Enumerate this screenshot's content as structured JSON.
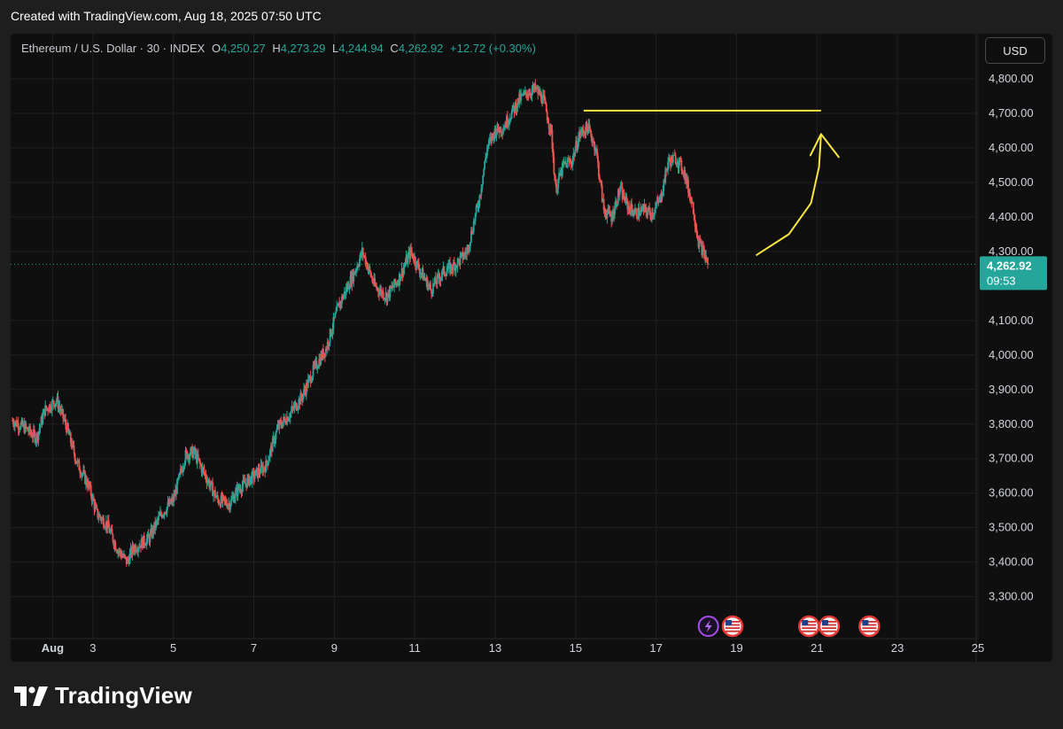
{
  "header": {
    "text": "Created with TradingView.com, Aug 18, 2025 07:50 UTC"
  },
  "legend": {
    "symbol": "Ethereum / U.S. Dollar · 30 · INDEX",
    "open_label": "O",
    "open": "4,250.27",
    "high_label": "H",
    "high": "4,273.29",
    "low_label": "L",
    "low": "4,244.94",
    "close_label": "C",
    "close": "4,262.92",
    "change": "+12.72 (+0.30%)"
  },
  "currency_button": "USD",
  "price_tag": {
    "price": "4,262.92",
    "countdown": "09:53"
  },
  "footer": {
    "brand": "TradingView"
  },
  "colors": {
    "up": "#26a69a",
    "down": "#ef5350",
    "annotation": "#f5e642",
    "background": "#0f0f0f",
    "grid": "#1f1f1f"
  },
  "event_icons": [
    {
      "type": "lightning-icon",
      "x": 18.3
    },
    {
      "type": "us-flag-icon",
      "x": 18.9
    },
    {
      "type": "us-flag-icon",
      "x": 20.8
    },
    {
      "type": "us-flag-icon",
      "x": 21.3
    },
    {
      "type": "us-flag-icon",
      "x": 22.3
    }
  ],
  "annotations": {
    "resistance_line": {
      "x_from": 15.2,
      "x_to": 21.1,
      "y": 4708
    },
    "arrow_path": [
      [
        19.5,
        4290
      ],
      [
        20.3,
        4350
      ],
      [
        20.85,
        4440
      ],
      [
        21.05,
        4545
      ],
      [
        21.1,
        4640
      ]
    ]
  },
  "chart_data": {
    "type": "candlestick",
    "title": "Ethereum / U.S. Dollar · 30 · INDEX",
    "interval": "30",
    "xlabel": "",
    "ylabel": "",
    "x_unit": "date (August 2025)",
    "xlim": [
      1.0,
      25.0
    ],
    "ylim": [
      3240,
      4895
    ],
    "x_ticks": [
      {
        "x": 2,
        "label": "Aug"
      },
      {
        "x": 3,
        "label": "3"
      },
      {
        "x": 5,
        "label": "5"
      },
      {
        "x": 7,
        "label": "7"
      },
      {
        "x": 9,
        "label": "9"
      },
      {
        "x": 11,
        "label": "11"
      },
      {
        "x": 13,
        "label": "13"
      },
      {
        "x": 15,
        "label": "15"
      },
      {
        "x": 17,
        "label": "17"
      },
      {
        "x": 19,
        "label": "19"
      },
      {
        "x": 21,
        "label": "21"
      },
      {
        "x": 23,
        "label": "23"
      },
      {
        "x": 25,
        "label": "25"
      }
    ],
    "y_ticks": [
      {
        "y": 3300,
        "label": "3,300.00"
      },
      {
        "y": 3400,
        "label": "3,400.00"
      },
      {
        "y": 3500,
        "label": "3,500.00"
      },
      {
        "y": 3600,
        "label": "3,600.00"
      },
      {
        "y": 3700,
        "label": "3,700.00"
      },
      {
        "y": 3800,
        "label": "3,800.00"
      },
      {
        "y": 3900,
        "label": "3,900.00"
      },
      {
        "y": 4000,
        "label": "4,000.00"
      },
      {
        "y": 4100,
        "label": "4,100.00"
      },
      {
        "y": 4300,
        "label": "4,300.00"
      },
      {
        "y": 4400,
        "label": "4,400.00"
      },
      {
        "y": 4500,
        "label": "4,500.00"
      },
      {
        "y": 4600,
        "label": "4,600.00"
      },
      {
        "y": 4700,
        "label": "4,700.00"
      },
      {
        "y": 4800,
        "label": "4,800.00"
      }
    ],
    "last_price": 4262.92,
    "price_path": [
      [
        1.0,
        3810
      ],
      [
        1.3,
        3790
      ],
      [
        1.6,
        3760
      ],
      [
        1.8,
        3840
      ],
      [
        2.1,
        3870
      ],
      [
        2.35,
        3790
      ],
      [
        2.6,
        3690
      ],
      [
        2.9,
        3620
      ],
      [
        3.1,
        3540
      ],
      [
        3.35,
        3510
      ],
      [
        3.6,
        3440
      ],
      [
        3.85,
        3400
      ],
      [
        4.0,
        3440
      ],
      [
        4.4,
        3470
      ],
      [
        4.7,
        3540
      ],
      [
        5.0,
        3580
      ],
      [
        5.3,
        3710
      ],
      [
        5.5,
        3720
      ],
      [
        5.8,
        3650
      ],
      [
        6.1,
        3580
      ],
      [
        6.4,
        3570
      ],
      [
        6.6,
        3610
      ],
      [
        7.0,
        3650
      ],
      [
        7.3,
        3680
      ],
      [
        7.6,
        3790
      ],
      [
        7.9,
        3830
      ],
      [
        8.2,
        3880
      ],
      [
        8.5,
        3960
      ],
      [
        8.8,
        4020
      ],
      [
        9.1,
        4140
      ],
      [
        9.3,
        4190
      ],
      [
        9.5,
        4240
      ],
      [
        9.7,
        4300
      ],
      [
        10.0,
        4200
      ],
      [
        10.3,
        4170
      ],
      [
        10.6,
        4220
      ],
      [
        10.9,
        4300
      ],
      [
        11.2,
        4230
      ],
      [
        11.4,
        4190
      ],
      [
        11.7,
        4240
      ],
      [
        12.0,
        4260
      ],
      [
        12.3,
        4300
      ],
      [
        12.6,
        4450
      ],
      [
        12.8,
        4600
      ],
      [
        13.0,
        4650
      ],
      [
        13.2,
        4660
      ],
      [
        13.4,
        4700
      ],
      [
        13.6,
        4740
      ],
      [
        13.8,
        4760
      ],
      [
        14.0,
        4770
      ],
      [
        14.2,
        4740
      ],
      [
        14.4,
        4640
      ],
      [
        14.5,
        4480
      ],
      [
        14.7,
        4550
      ],
      [
        14.9,
        4560
      ],
      [
        15.1,
        4640
      ],
      [
        15.3,
        4660
      ],
      [
        15.5,
        4600
      ],
      [
        15.7,
        4420
      ],
      [
        15.9,
        4400
      ],
      [
        16.1,
        4480
      ],
      [
        16.3,
        4430
      ],
      [
        16.5,
        4410
      ],
      [
        16.7,
        4420
      ],
      [
        16.9,
        4410
      ],
      [
        17.1,
        4450
      ],
      [
        17.3,
        4560
      ],
      [
        17.5,
        4570
      ],
      [
        17.7,
        4530
      ],
      [
        17.8,
        4480
      ],
      [
        17.9,
        4440
      ],
      [
        18.05,
        4330
      ],
      [
        18.2,
        4290
      ],
      [
        18.3,
        4262.92
      ]
    ]
  }
}
